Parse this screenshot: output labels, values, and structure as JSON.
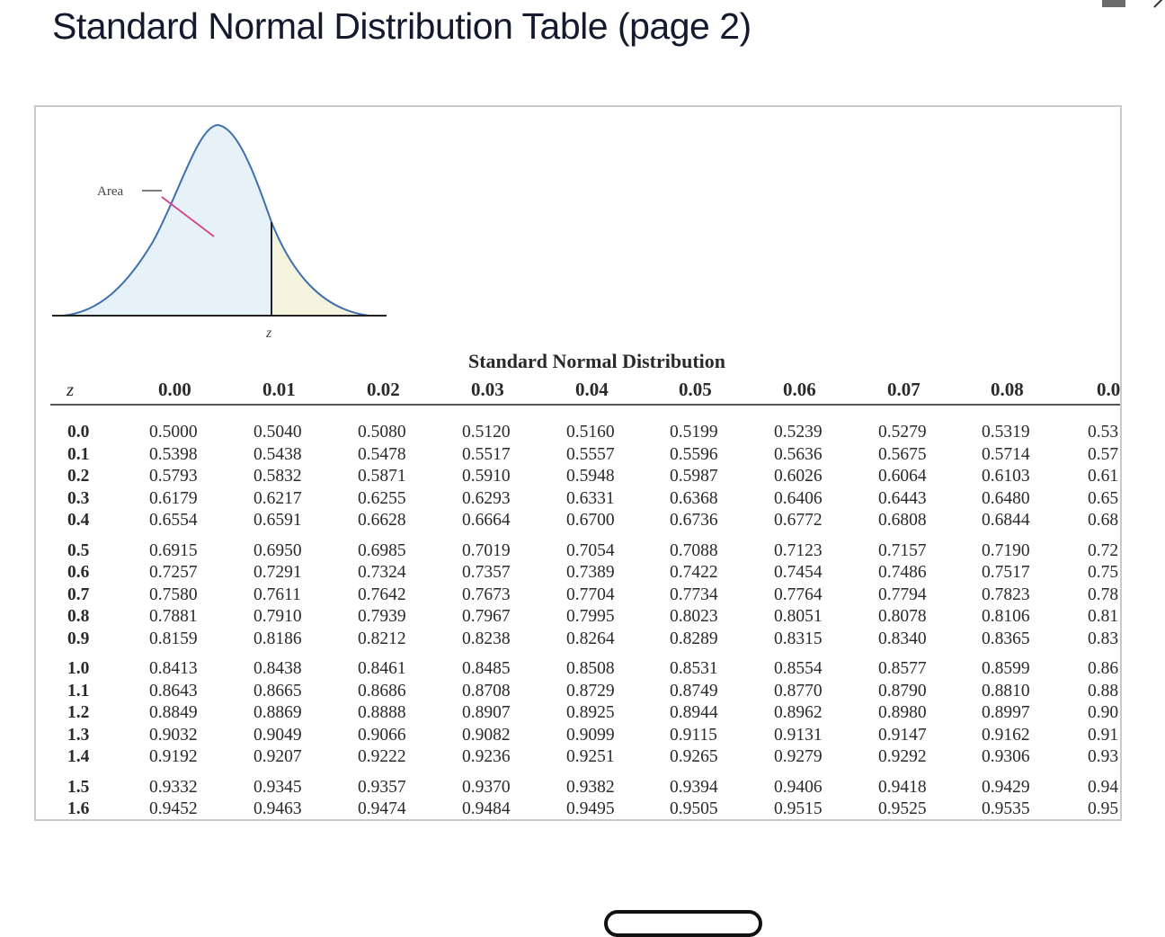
{
  "page": {
    "title": "Standard Normal Distribution Table (page 2)"
  },
  "figure": {
    "area_label": "Area",
    "z_label": "z"
  },
  "table": {
    "title": "Standard Normal Distribution",
    "z_header": "z",
    "column_headers": [
      "0.00",
      "0.01",
      "0.02",
      "0.03",
      "0.04",
      "0.05",
      "0.06",
      "0.07",
      "0.08",
      "0.0"
    ],
    "row_groups": [
      [
        {
          "z": "0.0",
          "values": [
            "0.5000",
            "0.5040",
            "0.5080",
            "0.5120",
            "0.5160",
            "0.5199",
            "0.5239",
            "0.5279",
            "0.5319",
            "0.53"
          ]
        },
        {
          "z": "0.1",
          "values": [
            "0.5398",
            "0.5438",
            "0.5478",
            "0.5517",
            "0.5557",
            "0.5596",
            "0.5636",
            "0.5675",
            "0.5714",
            "0.57"
          ]
        },
        {
          "z": "0.2",
          "values": [
            "0.5793",
            "0.5832",
            "0.5871",
            "0.5910",
            "0.5948",
            "0.5987",
            "0.6026",
            "0.6064",
            "0.6103",
            "0.61"
          ]
        },
        {
          "z": "0.3",
          "values": [
            "0.6179",
            "0.6217",
            "0.6255",
            "0.6293",
            "0.6331",
            "0.6368",
            "0.6406",
            "0.6443",
            "0.6480",
            "0.65"
          ]
        },
        {
          "z": "0.4",
          "values": [
            "0.6554",
            "0.6591",
            "0.6628",
            "0.6664",
            "0.6700",
            "0.6736",
            "0.6772",
            "0.6808",
            "0.6844",
            "0.68"
          ]
        }
      ],
      [
        {
          "z": "0.5",
          "values": [
            "0.6915",
            "0.6950",
            "0.6985",
            "0.7019",
            "0.7054",
            "0.7088",
            "0.7123",
            "0.7157",
            "0.7190",
            "0.72"
          ]
        },
        {
          "z": "0.6",
          "values": [
            "0.7257",
            "0.7291",
            "0.7324",
            "0.7357",
            "0.7389",
            "0.7422",
            "0.7454",
            "0.7486",
            "0.7517",
            "0.75"
          ]
        },
        {
          "z": "0.7",
          "values": [
            "0.7580",
            "0.7611",
            "0.7642",
            "0.7673",
            "0.7704",
            "0.7734",
            "0.7764",
            "0.7794",
            "0.7823",
            "0.78"
          ]
        },
        {
          "z": "0.8",
          "values": [
            "0.7881",
            "0.7910",
            "0.7939",
            "0.7967",
            "0.7995",
            "0.8023",
            "0.8051",
            "0.8078",
            "0.8106",
            "0.81"
          ]
        },
        {
          "z": "0.9",
          "values": [
            "0.8159",
            "0.8186",
            "0.8212",
            "0.8238",
            "0.8264",
            "0.8289",
            "0.8315",
            "0.8340",
            "0.8365",
            "0.83"
          ]
        }
      ],
      [
        {
          "z": "1.0",
          "values": [
            "0.8413",
            "0.8438",
            "0.8461",
            "0.8485",
            "0.8508",
            "0.8531",
            "0.8554",
            "0.8577",
            "0.8599",
            "0.86"
          ]
        },
        {
          "z": "1.1",
          "values": [
            "0.8643",
            "0.8665",
            "0.8686",
            "0.8708",
            "0.8729",
            "0.8749",
            "0.8770",
            "0.8790",
            "0.8810",
            "0.88"
          ]
        },
        {
          "z": "1.2",
          "values": [
            "0.8849",
            "0.8869",
            "0.8888",
            "0.8907",
            "0.8925",
            "0.8944",
            "0.8962",
            "0.8980",
            "0.8997",
            "0.90"
          ]
        },
        {
          "z": "1.3",
          "values": [
            "0.9032",
            "0.9049",
            "0.9066",
            "0.9082",
            "0.9099",
            "0.9115",
            "0.9131",
            "0.9147",
            "0.9162",
            "0.91"
          ]
        },
        {
          "z": "1.4",
          "values": [
            "0.9192",
            "0.9207",
            "0.9222",
            "0.9236",
            "0.9251",
            "0.9265",
            "0.9279",
            "0.9292",
            "0.9306",
            "0.93"
          ]
        }
      ],
      [
        {
          "z": "1.5",
          "values": [
            "0.9332",
            "0.9345",
            "0.9357",
            "0.9370",
            "0.9382",
            "0.9394",
            "0.9406",
            "0.9418",
            "0.9429",
            "0.94"
          ]
        },
        {
          "z": "1.6",
          "values": [
            "0.9452",
            "0.9463",
            "0.9474",
            "0.9484",
            "0.9495",
            "0.9505",
            "0.9515",
            "0.9525",
            "0.9535",
            "0.95"
          ]
        }
      ]
    ]
  },
  "colors": {
    "curve_stroke": "#3f6fb0",
    "left_area_fill": "#e6f1f8",
    "right_area_fill": "#f3f3de",
    "area_pointer": "#d6418a",
    "title_text": "#141a2e"
  }
}
